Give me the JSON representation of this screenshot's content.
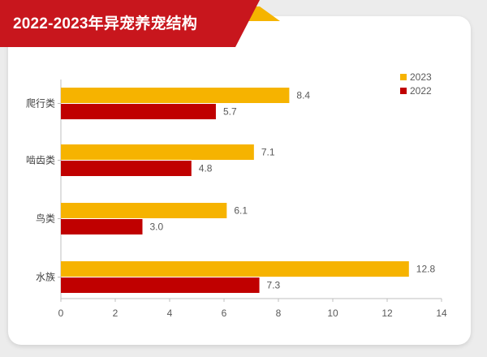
{
  "header": {
    "title": "2022-2023年异宠养宠结构"
  },
  "colors": {
    "banner_red": "#c8161d",
    "banner_gold": "#f5b400",
    "series_2023": "#f6b300",
    "series_2022": "#c00000"
  },
  "chart_data": {
    "type": "bar",
    "orientation": "horizontal",
    "categories": [
      "爬行类",
      "啮齿类",
      "鸟类",
      "水族"
    ],
    "series": [
      {
        "name": "2023",
        "values": [
          8.4,
          7.1,
          6.1,
          12.8
        ]
      },
      {
        "name": "2022",
        "values": [
          5.7,
          4.8,
          3.0,
          7.3
        ]
      }
    ],
    "xlim": [
      0,
      14
    ],
    "xticks": [
      0,
      2,
      4,
      6,
      8,
      10,
      12,
      14
    ],
    "value_labels": [
      [
        "8.4",
        "7.1",
        "6.1",
        "12.8"
      ],
      [
        "5.7",
        "4.8",
        "3.0",
        "7.3"
      ]
    ],
    "legend": [
      "2023",
      "2022"
    ],
    "legend_position": "top-right",
    "grid": false
  }
}
